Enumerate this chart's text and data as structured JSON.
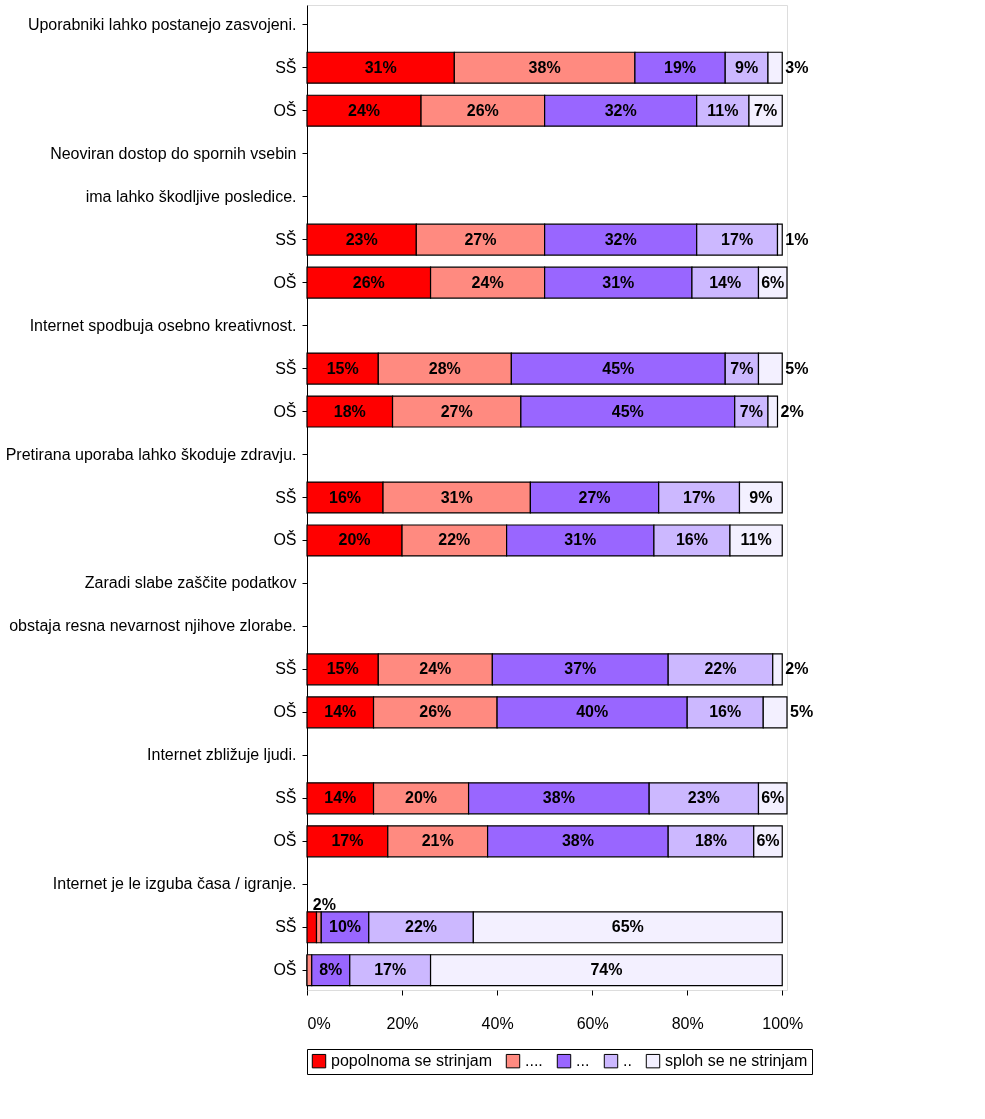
{
  "chart_data": {
    "type": "bar",
    "orientation": "horizontal",
    "stacked": true,
    "categories": [
      "Uporabniki lahko postanejo zasvojeni.",
      "SŠ",
      "OŠ",
      "Neoviran dostop do spornih vsebin",
      "ima lahko škodljive posledice.",
      "SŠ",
      "OŠ",
      "Internet spodbuja osebno kreativnost.",
      "SŠ",
      "OŠ",
      "Pretirana uporaba lahko škoduje zdravju.",
      "SŠ",
      "OŠ",
      "Zaradi slabe zaščite podatkov",
      "obstaja resna nevarnost njihove zlorabe.",
      "SŠ",
      "OŠ",
      "Internet zbližuje ljudi.",
      "SŠ",
      "OŠ",
      "Internet je le izguba časa / igranje.",
      "SŠ",
      "OŠ"
    ],
    "series": [
      {
        "name": "popolnoma se strinjam",
        "color": "#ff0000",
        "values": [
          null,
          31,
          24,
          null,
          null,
          23,
          26,
          null,
          15,
          18,
          null,
          16,
          20,
          null,
          null,
          15,
          14,
          null,
          14,
          17,
          null,
          2,
          0
        ],
        "value_labels": [
          null,
          "31%",
          "24%",
          null,
          null,
          "23%",
          "26%",
          null,
          "15%",
          "18%",
          null,
          "16%",
          "20%",
          null,
          null,
          "15%",
          "14%",
          null,
          "14%",
          "17%",
          null,
          "2%",
          null
        ]
      },
      {
        "name": "....",
        "color": "#ff8a80",
        "values": [
          null,
          38,
          26,
          null,
          null,
          27,
          24,
          null,
          28,
          27,
          null,
          31,
          22,
          null,
          null,
          24,
          26,
          null,
          20,
          21,
          null,
          1,
          1
        ],
        "value_labels": [
          null,
          "38%",
          "26%",
          null,
          null,
          "27%",
          "24%",
          null,
          "28%",
          "27%",
          null,
          "31%",
          "22%",
          null,
          null,
          "24%",
          "26%",
          null,
          "20%",
          "21%",
          null,
          null,
          null
        ]
      },
      {
        "name": "...",
        "color": "#9966ff",
        "values": [
          null,
          19,
          32,
          null,
          null,
          32,
          31,
          null,
          45,
          45,
          null,
          27,
          31,
          null,
          null,
          37,
          40,
          null,
          38,
          38,
          null,
          10,
          8
        ],
        "value_labels": [
          null,
          "19%",
          "32%",
          null,
          null,
          "32%",
          "31%",
          null,
          "45%",
          "45%",
          null,
          "27%",
          "31%",
          null,
          null,
          "37%",
          "40%",
          null,
          "38%",
          "38%",
          null,
          "10%",
          "8%"
        ]
      },
      {
        "name": "..",
        "color": "#ccb8ff",
        "values": [
          null,
          9,
          11,
          null,
          null,
          17,
          14,
          null,
          7,
          7,
          null,
          17,
          16,
          null,
          null,
          22,
          16,
          null,
          23,
          18,
          null,
          22,
          17
        ],
        "value_labels": [
          null,
          "9%",
          "11%",
          null,
          null,
          "17%",
          "14%",
          null,
          "7%",
          "7%",
          null,
          "17%",
          "16%",
          null,
          null,
          "22%",
          "16%",
          null,
          "23%",
          "18%",
          null,
          "22%",
          "17%"
        ]
      },
      {
        "name": "sploh se ne strinjam",
        "color": "#f3f0ff",
        "values": [
          null,
          3,
          7,
          null,
          null,
          1,
          6,
          null,
          5,
          2,
          null,
          9,
          11,
          null,
          null,
          2,
          5,
          null,
          6,
          6,
          null,
          65,
          74
        ],
        "value_labels": [
          null,
          "3%",
          "7%",
          null,
          null,
          "1%",
          "6%",
          null,
          "5%",
          "2%",
          null,
          "9%",
          "11%",
          null,
          null,
          "2%",
          "5%",
          null,
          "6%",
          "6%",
          null,
          "65%",
          "74%"
        ]
      }
    ],
    "xlim": [
      0,
      101
    ],
    "xticks": [
      {
        "value": 0,
        "label": "0%"
      },
      {
        "value": 20,
        "label": "20%"
      },
      {
        "value": 40,
        "label": "40%"
      },
      {
        "value": 60,
        "label": "60%"
      },
      {
        "value": 80,
        "label": "80%"
      },
      {
        "value": 100,
        "label": "100%"
      }
    ],
    "grid": false,
    "legend": "bottom"
  }
}
